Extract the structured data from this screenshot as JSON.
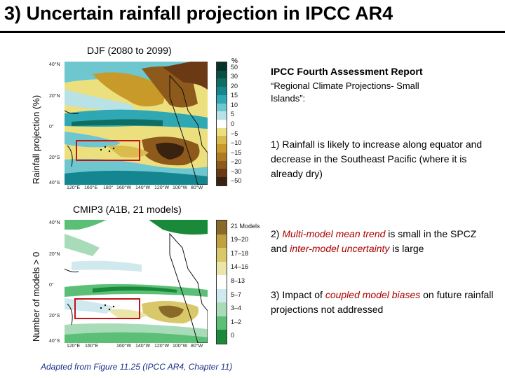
{
  "title": "3)  Uncertain rainfall projection in IPCC AR4",
  "top_panel": {
    "title": "DJF (2080 to 2099)",
    "ylabel": "Rainfall projection (%)",
    "unit": "%",
    "lat_labels": [
      "40°N",
      "20°N",
      "0°",
      "20°S",
      "40°S"
    ],
    "colorbar_labels": [
      "50",
      "30",
      "20",
      "15",
      "10",
      "5",
      "0",
      "−5",
      "−10",
      "−15",
      "−20",
      "−30",
      "−50"
    ],
    "colors": [
      "#3a2210",
      "#6b3a14",
      "#8e5a1c",
      "#b07a20",
      "#c89a2a",
      "#d9bb4e",
      "#ece07e",
      "#ffffff",
      "#b8e2e6",
      "#6ec6cf",
      "#2fa8b4",
      "#14868f",
      "#0f6e62",
      "#0a4f45",
      "#063327"
    ]
  },
  "bottom_panel": {
    "title": "CMIP3 (A1B, 21 models)",
    "ylabel": "Number of models > 0",
    "lat_labels": [
      "40°N",
      "20°N",
      "0°",
      "20°S",
      "40°S"
    ],
    "lon_labels": [
      "120°E",
      "160°E",
      "160°W",
      "140°W",
      "120°W",
      "100°W",
      "80°W"
    ],
    "colorbar_labels": [
      "21 Models",
      "19–20",
      "17–18",
      "14–16",
      "8–13",
      "5–7",
      "3–4",
      "1–2",
      "0"
    ],
    "colors": [
      "#1a8a3a",
      "#5bbf78",
      "#a8dcb8",
      "#cfe9ee",
      "#ffffff",
      "#eae5a8",
      "#d9c86a",
      "#c0a040",
      "#8a6a28"
    ]
  },
  "lon_labels_top": [
    "120°E",
    "160°E",
    "180°",
    "160°W",
    "140°W",
    "120°W",
    "100°W",
    "80°W"
  ],
  "right_text": {
    "heading": "IPCC Fourth Assessment Report",
    "quote": "“Regional Climate Projections- Small Islands”:",
    "point1": "1)  Rainfall is likely to increase along equator and decrease in the Southeast Pacific (where it is already dry)",
    "point2_pre": "2)  ",
    "point2_hl1": "Multi-model mean trend",
    "point2_mid": " is small in the SPCZ and ",
    "point2_hl2": "inter-model uncertainty",
    "point2_post": " is large",
    "point3_pre": "3)  Impact of ",
    "point3_hl": "coupled model biases",
    "point3_post": " on future rainfall projections not addressed"
  },
  "caption": "Adapted from Figure 11.25 (IPCC AR4, Chapter 11)"
}
